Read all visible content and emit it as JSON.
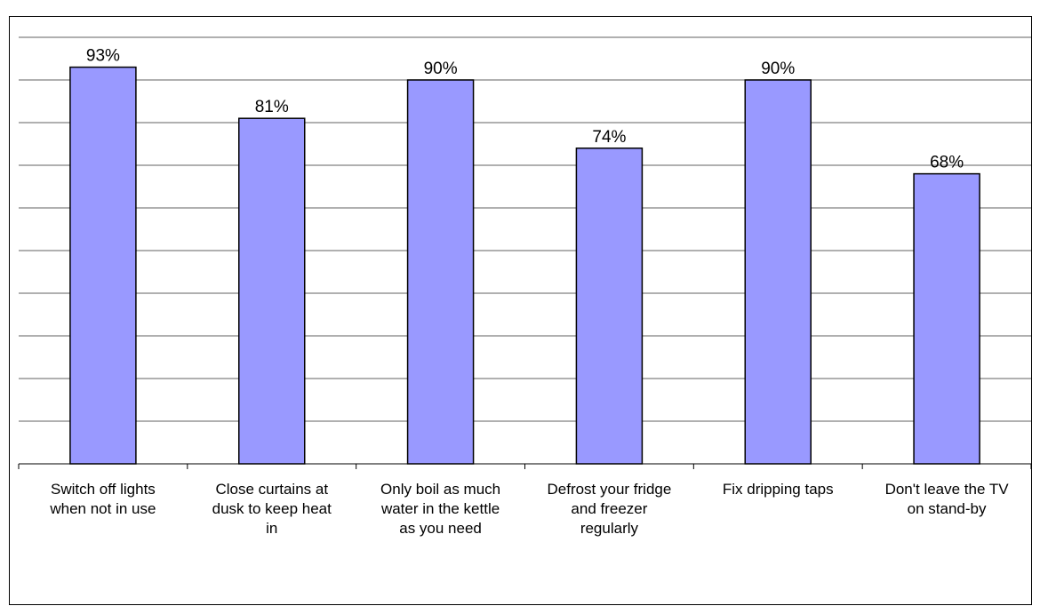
{
  "chart_data": {
    "type": "bar",
    "categories": [
      [
        "Switch off lights",
        "when not in use"
      ],
      [
        "Close curtains at",
        "dusk to keep heat",
        "in"
      ],
      [
        "Only boil as much",
        "water in the kettle",
        "as you need"
      ],
      [
        "Defrost your fridge",
        "and freezer",
        "regularly"
      ],
      [
        "Fix dripping taps"
      ],
      [
        "Don't leave the TV",
        "on stand-by"
      ]
    ],
    "values": [
      93,
      81,
      90,
      74,
      90,
      68
    ],
    "data_labels": [
      "93%",
      "81%",
      "90%",
      "74%",
      "90%",
      "68%"
    ],
    "ylim": [
      0,
      100
    ],
    "grid": true,
    "legend": "none",
    "title": "",
    "xlabel": "",
    "ylabel": ""
  },
  "colors": {
    "bar_fill": "#9999ff",
    "bar_stroke": "#000000",
    "grid": "#808080",
    "frame": "#000000"
  }
}
